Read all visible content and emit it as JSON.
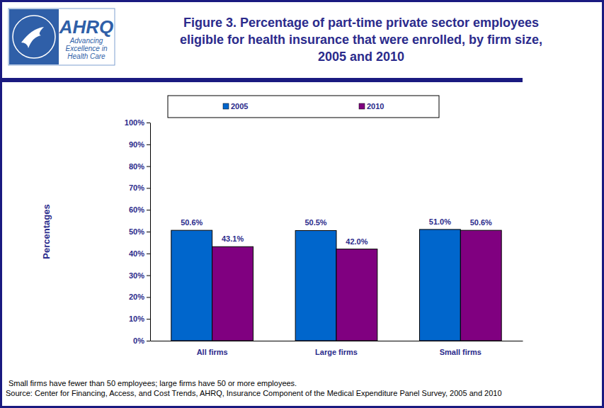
{
  "chart_data": {
    "type": "bar",
    "title": "Figure 3. Percentage of part-time private sector employees eligible for health insurance that were enrolled, by firm size, 2005 and 2010",
    "y_label": "Percentages",
    "categories": [
      "All firms",
      "Large firms",
      "Small firms"
    ],
    "series": [
      {
        "name": "2005",
        "color": "#0066cc",
        "values": [
          50.6,
          50.5,
          51.0
        ],
        "value_labels": [
          "50.6%",
          "50.5%",
          "51.0%"
        ]
      },
      {
        "name": "2010",
        "color": "#800080",
        "values": [
          43.1,
          42.0,
          50.6
        ],
        "value_labels": [
          "43.1%",
          "42.0%",
          "50.6%"
        ]
      }
    ],
    "ylim": [
      0,
      100
    ],
    "yticks": [
      {
        "value": 0,
        "label": "0%"
      },
      {
        "value": 10,
        "label": "10%"
      },
      {
        "value": 20,
        "label": "20%"
      },
      {
        "value": 30,
        "label": "30%"
      },
      {
        "value": 40,
        "label": "40%"
      },
      {
        "value": 50,
        "label": "50%"
      },
      {
        "value": 60,
        "label": "60%"
      },
      {
        "value": 70,
        "label": "70%"
      },
      {
        "value": 80,
        "label": "80%"
      },
      {
        "value": 90,
        "label": "90%"
      },
      {
        "value": 100,
        "label": "100%"
      }
    ],
    "grid": false,
    "legend": "top",
    "data_labels": true,
    "annotations": [
      "AHRQ",
      "Advancing",
      "Excellence in",
      "Health Care",
      "Small firms have fewer than 50 employees; large firms have 50 or more employees.",
      "Source: Center for Financing, Access, and Cost Trends, AHRQ, Insurance Component of the Medical Expenditure Panel Survey,  2005 and 2010"
    ]
  }
}
